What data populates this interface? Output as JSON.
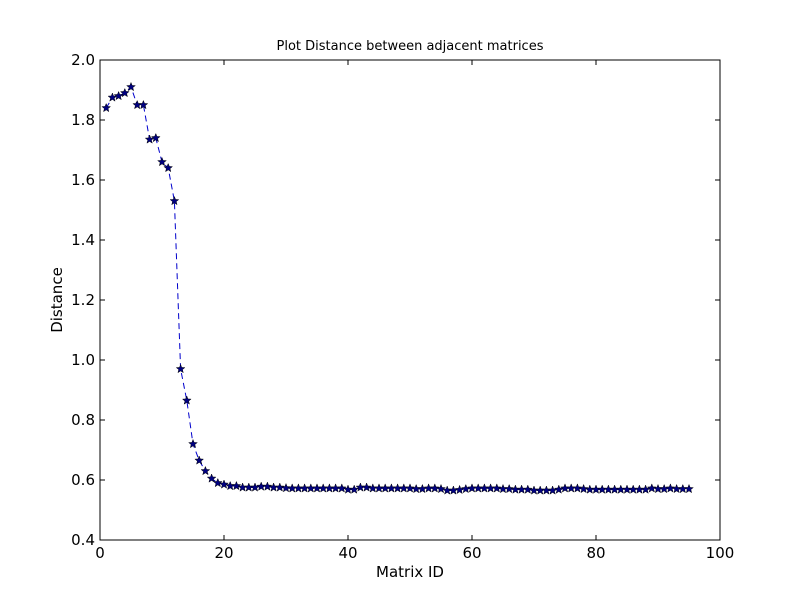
{
  "chart_data": {
    "type": "line",
    "title": "Plot Distance between adjacent matrices",
    "xlabel": "Matrix ID",
    "ylabel": "Distance",
    "xlim": [
      0,
      100
    ],
    "ylim": [
      0.4,
      2.0
    ],
    "xticks": [
      0,
      20,
      40,
      60,
      80,
      100
    ],
    "yticks": [
      0.4,
      0.6,
      0.8,
      1.0,
      1.2,
      1.4,
      1.6,
      1.8,
      2.0
    ],
    "xtick_labels": [
      "0",
      "20",
      "40",
      "60",
      "80",
      "100"
    ],
    "ytick_labels": [
      "0.4",
      "0.6",
      "0.8",
      "1.0",
      "1.2",
      "1.4",
      "1.6",
      "1.8",
      "2.0"
    ],
    "grid": false,
    "line_style": "dashed",
    "marker": "star",
    "line_color": "#0000cc",
    "marker_color": "#000080",
    "series": [
      {
        "x": [
          1,
          2,
          3,
          4,
          5,
          6,
          7,
          8,
          9,
          10,
          11,
          12,
          13,
          14,
          15,
          16,
          17,
          18,
          19,
          20,
          21,
          22,
          23,
          24,
          25,
          26,
          27,
          28,
          29,
          30,
          31,
          32,
          33,
          34,
          35,
          36,
          37,
          38,
          39,
          40,
          41,
          42,
          43,
          44,
          45,
          46,
          47,
          48,
          49,
          50,
          51,
          52,
          53,
          54,
          55,
          56,
          57,
          58,
          59,
          60,
          61,
          62,
          63,
          64,
          65,
          66,
          67,
          68,
          69,
          70,
          71,
          72,
          73,
          74,
          75,
          76,
          77,
          78,
          79,
          80,
          81,
          82,
          83,
          84,
          85,
          86,
          87,
          88,
          89,
          90,
          91,
          92,
          93,
          94,
          95
        ],
        "values": [
          1.84,
          1.875,
          1.88,
          1.89,
          1.91,
          1.85,
          1.85,
          1.735,
          1.74,
          1.66,
          1.64,
          1.53,
          0.97,
          0.865,
          0.72,
          0.665,
          0.63,
          0.605,
          0.59,
          0.585,
          0.58,
          0.58,
          0.575,
          0.575,
          0.575,
          0.578,
          0.578,
          0.575,
          0.575,
          0.573,
          0.572,
          0.572,
          0.572,
          0.572,
          0.572,
          0.572,
          0.572,
          0.572,
          0.572,
          0.568,
          0.568,
          0.575,
          0.575,
          0.572,
          0.572,
          0.572,
          0.572,
          0.572,
          0.572,
          0.572,
          0.57,
          0.57,
          0.572,
          0.572,
          0.57,
          0.565,
          0.565,
          0.567,
          0.57,
          0.572,
          0.572,
          0.572,
          0.572,
          0.572,
          0.57,
          0.57,
          0.568,
          0.568,
          0.568,
          0.565,
          0.565,
          0.565,
          0.565,
          0.568,
          0.572,
          0.572,
          0.572,
          0.57,
          0.568,
          0.568,
          0.568,
          0.568,
          0.568,
          0.568,
          0.568,
          0.568,
          0.568,
          0.568,
          0.572,
          0.57,
          0.57,
          0.572,
          0.57,
          0.57,
          0.57
        ]
      }
    ]
  }
}
